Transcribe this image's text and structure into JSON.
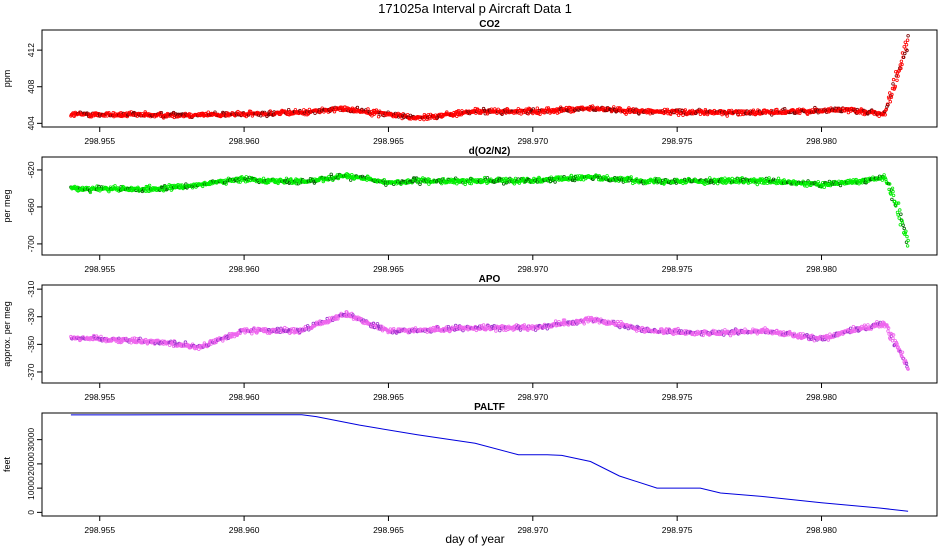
{
  "figure": {
    "title": "171025a   Interval p Aircraft Data 1",
    "xlabel": "day of year"
  },
  "chart_data": [
    {
      "type": "scatter",
      "title": "CO2",
      "ylabel": "ppm",
      "xlim": [
        298.953,
        298.984
      ],
      "ylim": [
        403.6,
        414.2
      ],
      "xticks": [
        298.955,
        298.96,
        298.965,
        298.97,
        298.975,
        298.98
      ],
      "xtick_labels": [
        "298.955",
        "298.960",
        "298.965",
        "298.970",
        "298.975",
        "298.980"
      ],
      "yticks": [
        404,
        408,
        412
      ],
      "ytick_labels": [
        "404",
        "408",
        "412"
      ],
      "colors": {
        "primary": "#ff0000",
        "secondary": "#7a0000"
      },
      "series": [
        {
          "name": "CO2",
          "x": [
            298.954,
            298.957,
            298.96,
            298.962,
            298.9635,
            298.965,
            298.966,
            298.968,
            298.97,
            298.972,
            298.974,
            298.976,
            298.978,
            298.98,
            298.981,
            298.9822,
            298.9826,
            298.983
          ],
          "y": [
            405.0,
            404.9,
            405.0,
            405.2,
            405.6,
            405.0,
            404.6,
            405.3,
            405.3,
            405.6,
            405.3,
            405.2,
            405.2,
            405.4,
            405.5,
            405.0,
            409.0,
            413.0
          ]
        }
      ]
    },
    {
      "type": "scatter",
      "title": "d(O2/N2)",
      "ylabel": "per meg",
      "xlim": [
        298.953,
        298.984
      ],
      "ylim": [
        -712,
        -606
      ],
      "xticks": [
        298.955,
        298.96,
        298.965,
        298.97,
        298.975,
        298.98
      ],
      "xtick_labels": [
        "298.955",
        "298.960",
        "298.965",
        "298.970",
        "298.975",
        "298.980"
      ],
      "yticks": [
        -620,
        -660,
        -700
      ],
      "ytick_labels": [
        "-620",
        "-660",
        "-700"
      ],
      "colors": {
        "primary": "#00ee00",
        "secondary": "#006600"
      },
      "series": [
        {
          "name": "d(O2/N2)",
          "x": [
            298.954,
            298.957,
            298.96,
            298.962,
            298.9635,
            298.965,
            298.966,
            298.968,
            298.97,
            298.972,
            298.974,
            298.976,
            298.978,
            298.98,
            298.981,
            298.9822,
            298.9826,
            298.983
          ],
          "y": [
            -640,
            -641,
            -630,
            -633,
            -626,
            -634,
            -632,
            -632,
            -631,
            -628,
            -632,
            -632,
            -632,
            -636,
            -633,
            -628,
            -658,
            -698
          ]
        }
      ]
    },
    {
      "type": "scatter",
      "title": "APO",
      "ylabel": "approx. per meg",
      "xlim": [
        298.953,
        298.984
      ],
      "ylim": [
        -378,
        -307
      ],
      "xticks": [
        298.955,
        298.96,
        298.965,
        298.97,
        298.975,
        298.98
      ],
      "xtick_labels": [
        "298.955",
        "298.960",
        "298.965",
        "298.970",
        "298.975",
        "298.980"
      ],
      "yticks": [
        -310,
        -330,
        -350,
        -370
      ],
      "ytick_labels": [
        "-310",
        "-330",
        "-350",
        "-370"
      ],
      "colors": {
        "primary": "#ee66ee",
        "secondary": "#9933cc"
      },
      "series": [
        {
          "name": "APO",
          "x": [
            298.954,
            298.957,
            298.9585,
            298.96,
            298.962,
            298.9635,
            298.965,
            298.966,
            298.968,
            298.97,
            298.972,
            298.974,
            298.976,
            298.978,
            298.98,
            298.981,
            298.9822,
            298.9826,
            298.983
          ],
          "y": [
            -345,
            -348,
            -352,
            -340,
            -340,
            -328,
            -340,
            -340,
            -338,
            -338,
            -332,
            -340,
            -342,
            -340,
            -346,
            -340,
            -335,
            -350,
            -368
          ]
        }
      ]
    },
    {
      "type": "line",
      "title": "PALTF",
      "ylabel": "feet",
      "xlim": [
        298.953,
        298.984
      ],
      "ylim": [
        -1500,
        41000
      ],
      "xticks": [
        298.955,
        298.96,
        298.965,
        298.97,
        298.975,
        298.98
      ],
      "xtick_labels": [
        "298.955",
        "298.960",
        "298.965",
        "298.970",
        "298.975",
        "298.980"
      ],
      "yticks": [
        0,
        10000,
        20000,
        30000
      ],
      "ytick_labels": [
        "0",
        "10000",
        "20000",
        "30000"
      ],
      "colors": {
        "primary": "#0000dd"
      },
      "series": [
        {
          "name": "PALTF",
          "x": [
            298.954,
            298.958,
            298.96,
            298.962,
            298.9625,
            298.964,
            298.966,
            298.968,
            298.9695,
            298.9705,
            298.971,
            298.972,
            298.973,
            298.9743,
            298.975,
            298.9758,
            298.9765,
            298.978,
            298.98,
            298.982,
            298.983
          ],
          "y": [
            40200,
            40250,
            40300,
            40300,
            39500,
            36000,
            32000,
            28500,
            23800,
            23800,
            23500,
            21000,
            15000,
            10000,
            10000,
            10000,
            8000,
            6500,
            4000,
            1800,
            500
          ]
        }
      ]
    }
  ]
}
